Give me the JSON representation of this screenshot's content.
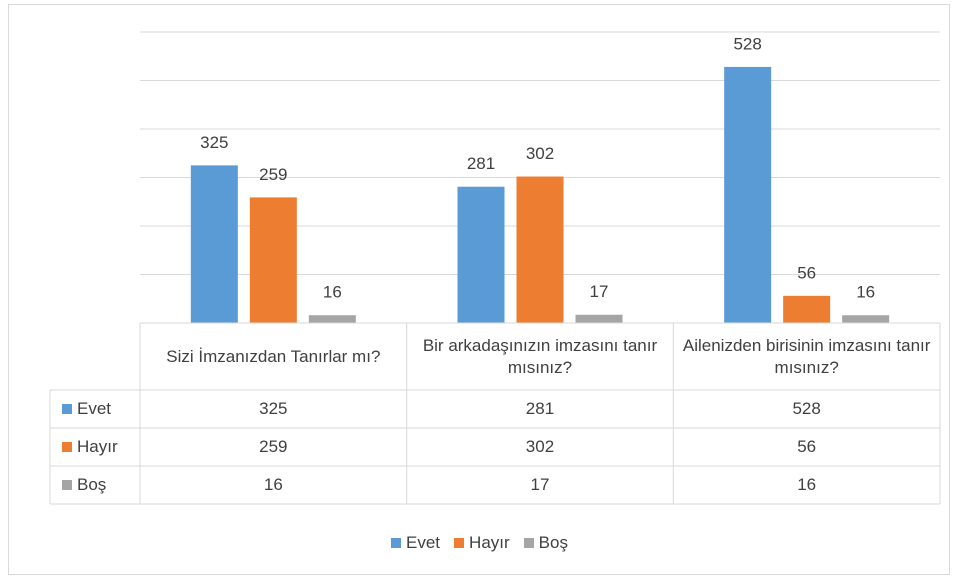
{
  "chart_data": {
    "type": "bar",
    "categories": [
      "Sizi İmzanızdan Tanırlar mı?",
      "Bir arkadaşınızın imzasını tanır mısınız?",
      "Ailenizden birisinin imzasını tanır mısınız?"
    ],
    "series": [
      {
        "name": "Evet",
        "color": "#5b9bd5",
        "values": [
          325,
          281,
          528
        ]
      },
      {
        "name": "Hayır",
        "color": "#ed7d31",
        "values": [
          259,
          302,
          56
        ]
      },
      {
        "name": "Boş",
        "color": "#a5a5a5",
        "values": [
          16,
          17,
          16
        ]
      }
    ],
    "ylim": [
      0,
      600
    ],
    "yticks": [
      0,
      100,
      200,
      300,
      400,
      500,
      600
    ],
    "grid": true,
    "legend": "bottom"
  }
}
